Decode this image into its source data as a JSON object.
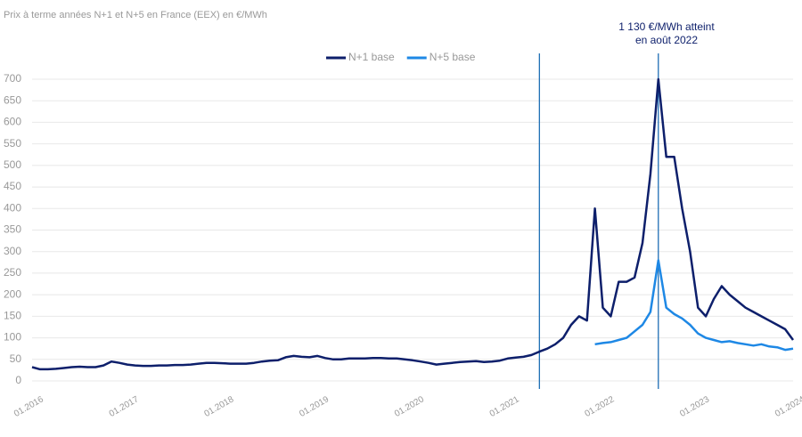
{
  "chart_data": {
    "type": "line",
    "title": "Prix à terme années N+1 et N+5 en France (EEX) en €/MWh",
    "annotation": [
      "1 130 €/MWh atteint",
      "en août 2022"
    ],
    "annotation_x": "08.2022",
    "vlines": [
      "05.2021",
      "08.2022"
    ],
    "x": [
      "01.2016",
      "02.2016",
      "03.2016",
      "04.2016",
      "05.2016",
      "06.2016",
      "07.2016",
      "08.2016",
      "09.2016",
      "10.2016",
      "11.2016",
      "12.2016",
      "01.2017",
      "02.2017",
      "03.2017",
      "04.2017",
      "05.2017",
      "06.2017",
      "07.2017",
      "08.2017",
      "09.2017",
      "10.2017",
      "11.2017",
      "12.2017",
      "01.2018",
      "02.2018",
      "03.2018",
      "04.2018",
      "05.2018",
      "06.2018",
      "07.2018",
      "08.2018",
      "09.2018",
      "10.2018",
      "11.2018",
      "12.2018",
      "01.2019",
      "02.2019",
      "03.2019",
      "04.2019",
      "05.2019",
      "06.2019",
      "07.2019",
      "08.2019",
      "09.2019",
      "10.2019",
      "11.2019",
      "12.2019",
      "01.2020",
      "02.2020",
      "03.2020",
      "04.2020",
      "05.2020",
      "06.2020",
      "07.2020",
      "08.2020",
      "09.2020",
      "10.2020",
      "11.2020",
      "12.2020",
      "01.2021",
      "02.2021",
      "03.2021",
      "04.2021",
      "05.2021",
      "06.2021",
      "07.2021",
      "08.2021",
      "09.2021",
      "10.2021",
      "11.2021",
      "12.2021",
      "01.2022",
      "02.2022",
      "03.2022",
      "04.2022",
      "05.2022",
      "06.2022",
      "07.2022",
      "08.2022",
      "09.2022",
      "10.2022",
      "11.2022",
      "12.2022",
      "01.2023",
      "02.2023",
      "03.2023",
      "04.2023",
      "05.2023",
      "06.2023",
      "07.2023",
      "08.2023",
      "09.2023",
      "10.2023",
      "11.2023",
      "12.2023",
      "01.2024"
    ],
    "xticks": [
      "01.2016",
      "01.2017",
      "01.2018",
      "01.2019",
      "01.2020",
      "01.2021",
      "01.2022",
      "01.2023",
      "01.2024"
    ],
    "series": [
      {
        "name": "N+1 base",
        "color": "#0d1f6b",
        "values": [
          32,
          27,
          27,
          28,
          30,
          32,
          33,
          32,
          32,
          36,
          45,
          42,
          38,
          36,
          35,
          35,
          36,
          36,
          37,
          37,
          38,
          40,
          42,
          42,
          41,
          40,
          40,
          40,
          42,
          45,
          47,
          48,
          55,
          58,
          56,
          55,
          58,
          53,
          50,
          50,
          52,
          52,
          52,
          53,
          53,
          52,
          52,
          50,
          48,
          45,
          42,
          38,
          40,
          42,
          44,
          45,
          46,
          44,
          45,
          47,
          52,
          54,
          56,
          60,
          68,
          75,
          85,
          100,
          130,
          150,
          140,
          400,
          170,
          150,
          230,
          230,
          240,
          320,
          480,
          700,
          520,
          520,
          400,
          300,
          170,
          150,
          190,
          220,
          200,
          185,
          170,
          160,
          150,
          140,
          130,
          120,
          95
        ]
      },
      {
        "name": "N+5 base",
        "color": "#1e88e5",
        "values": [
          null,
          null,
          null,
          null,
          null,
          null,
          null,
          null,
          null,
          null,
          null,
          null,
          null,
          null,
          null,
          null,
          null,
          null,
          null,
          null,
          null,
          null,
          null,
          null,
          null,
          null,
          null,
          null,
          null,
          null,
          null,
          null,
          null,
          null,
          null,
          null,
          null,
          null,
          null,
          null,
          null,
          null,
          null,
          null,
          null,
          null,
          null,
          null,
          null,
          null,
          null,
          null,
          null,
          null,
          null,
          null,
          null,
          null,
          null,
          null,
          null,
          null,
          null,
          null,
          null,
          null,
          null,
          null,
          null,
          null,
          null,
          85,
          88,
          90,
          95,
          100,
          115,
          130,
          160,
          280,
          170,
          155,
          145,
          130,
          110,
          100,
          95,
          90,
          92,
          88,
          85,
          82,
          85,
          80,
          78,
          72,
          75
        ]
      }
    ],
    "ylim": [
      0,
      700
    ],
    "yticks": [
      0,
      50,
      100,
      150,
      200,
      250,
      300,
      350,
      400,
      450,
      500,
      550,
      600,
      650,
      700
    ],
    "grid": true,
    "legend": "top"
  }
}
